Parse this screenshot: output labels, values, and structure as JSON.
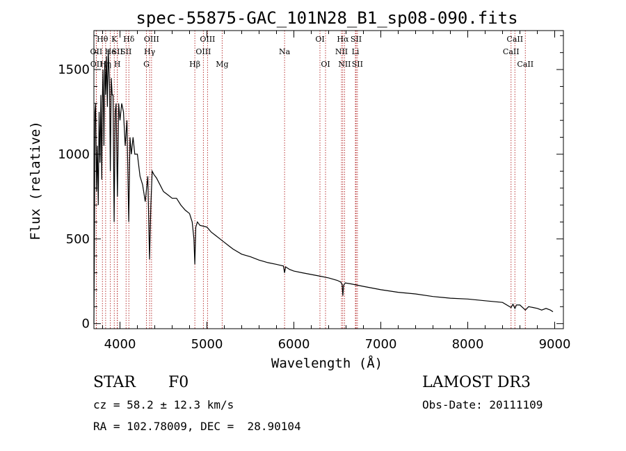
{
  "chart_data": {
    "type": "line",
    "title": "spec-55875-GAC_101N28_B1_sp08-090.fits",
    "xlabel": "Wavelength (Å)",
    "ylabel": "Flux (relative)",
    "xlim": [
      3700,
      9100
    ],
    "ylim": [
      -30,
      1730
    ],
    "xticks": [
      4000,
      5000,
      6000,
      7000,
      8000,
      9000
    ],
    "yticks": [
      0,
      500,
      1000,
      1500
    ],
    "line_color": "#b22222",
    "series": [
      {
        "name": "Flux",
        "x": [
          3700,
          3705,
          3712,
          3720,
          3730,
          3740,
          3750,
          3760,
          3770,
          3780,
          3790,
          3797,
          3805,
          3815,
          3825,
          3835,
          3845,
          3855,
          3865,
          3880,
          3889,
          3900,
          3910,
          3920,
          3933,
          3945,
          3955,
          3970,
          3985,
          4000,
          4020,
          4040,
          4060,
          4080,
          4101,
          4115,
          4130,
          4150,
          4170,
          4200,
          4230,
          4260,
          4290,
          4320,
          4340,
          4355,
          4370,
          4390,
          4420,
          4460,
          4500,
          4550,
          4600,
          4650,
          4700,
          4750,
          4800,
          4830,
          4850,
          4861,
          4872,
          4890,
          4920,
          4960,
          5000,
          5050,
          5100,
          5150,
          5200,
          5250,
          5300,
          5400,
          5500,
          5600,
          5700,
          5800,
          5880,
          5893,
          5905,
          5950,
          6000,
          6100,
          6200,
          6300,
          6400,
          6500,
          6540,
          6555,
          6563,
          6572,
          6590,
          6650,
          6700,
          6800,
          6900,
          7000,
          7200,
          7400,
          7600,
          7800,
          8000,
          8200,
          8400,
          8498,
          8520,
          8542,
          8560,
          8600,
          8662,
          8700,
          8750,
          8800,
          8850,
          8900,
          8950,
          8980
        ],
        "y": [
          0,
          380,
          1250,
          1300,
          780,
          1050,
          700,
          1250,
          950,
          1350,
          850,
          1300,
          1500,
          1050,
          1550,
          1350,
          1580,
          1280,
          1620,
          1400,
          900,
          1450,
          1350,
          1350,
          600,
          1250,
          1300,
          750,
          1300,
          1200,
          1300,
          1250,
          1050,
          1200,
          600,
          1100,
          1000,
          1100,
          1000,
          1000,
          870,
          820,
          720,
          870,
          380,
          700,
          900,
          880,
          860,
          820,
          780,
          760,
          740,
          740,
          700,
          670,
          650,
          600,
          500,
          350,
          570,
          600,
          580,
          575,
          570,
          540,
          520,
          500,
          480,
          460,
          440,
          410,
          395,
          375,
          360,
          350,
          340,
          300,
          335,
          320,
          310,
          300,
          290,
          280,
          270,
          255,
          245,
          230,
          165,
          225,
          240,
          235,
          230,
          220,
          210,
          200,
          185,
          175,
          160,
          150,
          145,
          135,
          125,
          95,
          115,
          90,
          110,
          110,
          80,
          100,
          95,
          90,
          80,
          90,
          80,
          70
        ]
      }
    ],
    "spectral_lines": [
      {
        "label": "Hθ",
        "wl": 3798,
        "row": 0
      },
      {
        "label": "OII",
        "wl": 3727,
        "row": 1
      },
      {
        "label": "OII",
        "wl": 3729,
        "row": 2
      },
      {
        "label": "Hη",
        "wl": 3835,
        "row": 2
      },
      {
        "label": "He",
        "wl": 3889,
        "row": 1
      },
      {
        "label": "K",
        "wl": 3934,
        "row": 0
      },
      {
        "label": "SII",
        "wl": 3970,
        "row": 1
      },
      {
        "label": "H",
        "wl": 3969,
        "row": 2
      },
      {
        "label": "Hδ",
        "wl": 4102,
        "row": 0
      },
      {
        "label": "SII",
        "wl": 4070,
        "row": 1
      },
      {
        "label": "OIII",
        "wl": 4363,
        "row": 0
      },
      {
        "label": "Hγ",
        "wl": 4341,
        "row": 1
      },
      {
        "label": "G",
        "wl": 4304,
        "row": 2
      },
      {
        "label": "Hβ",
        "wl": 4861,
        "row": 2
      },
      {
        "label": "OIII",
        "wl": 5007,
        "row": 0
      },
      {
        "label": "OIII",
        "wl": 4959,
        "row": 1
      },
      {
        "label": "Mg",
        "wl": 5175,
        "row": 2
      },
      {
        "label": "Na",
        "wl": 5893,
        "row": 1
      },
      {
        "label": "OI",
        "wl": 6300,
        "row": 0
      },
      {
        "label": "OI",
        "wl": 6364,
        "row": 2
      },
      {
        "label": "Hα",
        "wl": 6563,
        "row": 0
      },
      {
        "label": "NII",
        "wl": 6548,
        "row": 1
      },
      {
        "label": "NII",
        "wl": 6583,
        "row": 2
      },
      {
        "label": "SII",
        "wl": 6716,
        "row": 0
      },
      {
        "label": "Li",
        "wl": 6708,
        "row": 1
      },
      {
        "label": "SII",
        "wl": 6731,
        "row": 2
      },
      {
        "label": "CaII",
        "wl": 8542,
        "row": 0
      },
      {
        "label": "CaII",
        "wl": 8498,
        "row": 1
      },
      {
        "label": "CaII",
        "wl": 8662,
        "row": 2
      }
    ]
  },
  "info": {
    "class": "STAR",
    "subclass": "F0",
    "survey": "LAMOST DR3",
    "cz": "cz = 58.2 ± 12.3 km/s",
    "obs_date": "Obs-Date: 20111109",
    "coords": "RA = 102.78009, DEC =  28.90104"
  }
}
